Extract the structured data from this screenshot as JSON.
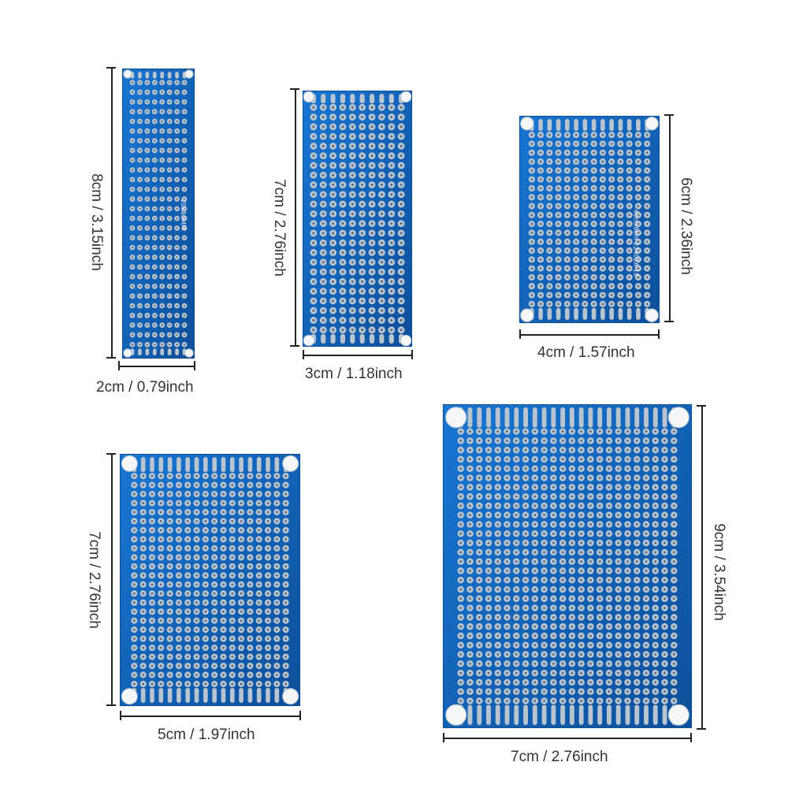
{
  "colors": {
    "board": "#1565c0",
    "board_dark": "#0d4f9a",
    "pad": "#b8c4cf",
    "hole": "#5c6f82",
    "silk": "#e6eefa",
    "ink": "#222222"
  },
  "boards": [
    {
      "id": "2x8",
      "width_label": "2cm / 0.79inch",
      "height_label": "8cm / 3.15inch",
      "cols": 8,
      "rows": 28,
      "silk_text": "20x80MM"
    },
    {
      "id": "3x7",
      "width_label": "3cm / 1.18inch",
      "height_label": "7cm / 2.76inch",
      "cols": 10,
      "rows": 24,
      "silk_text": ""
    },
    {
      "id": "4x6",
      "width_label": "4cm / 1.57inch",
      "height_label": "6cm / 2.36inch",
      "cols": 14,
      "rows": 20,
      "silk_text": "4cmx6cm 22402A-18"
    },
    {
      "id": "5x7",
      "width_label": "5cm / 1.97inch",
      "height_label": "7cm / 2.76inch",
      "cols": 18,
      "rows": 24,
      "silk_text": ""
    },
    {
      "id": "7x9",
      "width_label": "7cm / 2.76inch",
      "height_label": "9cm / 3.54inch",
      "cols": 24,
      "rows": 30,
      "silk_text": ""
    }
  ]
}
